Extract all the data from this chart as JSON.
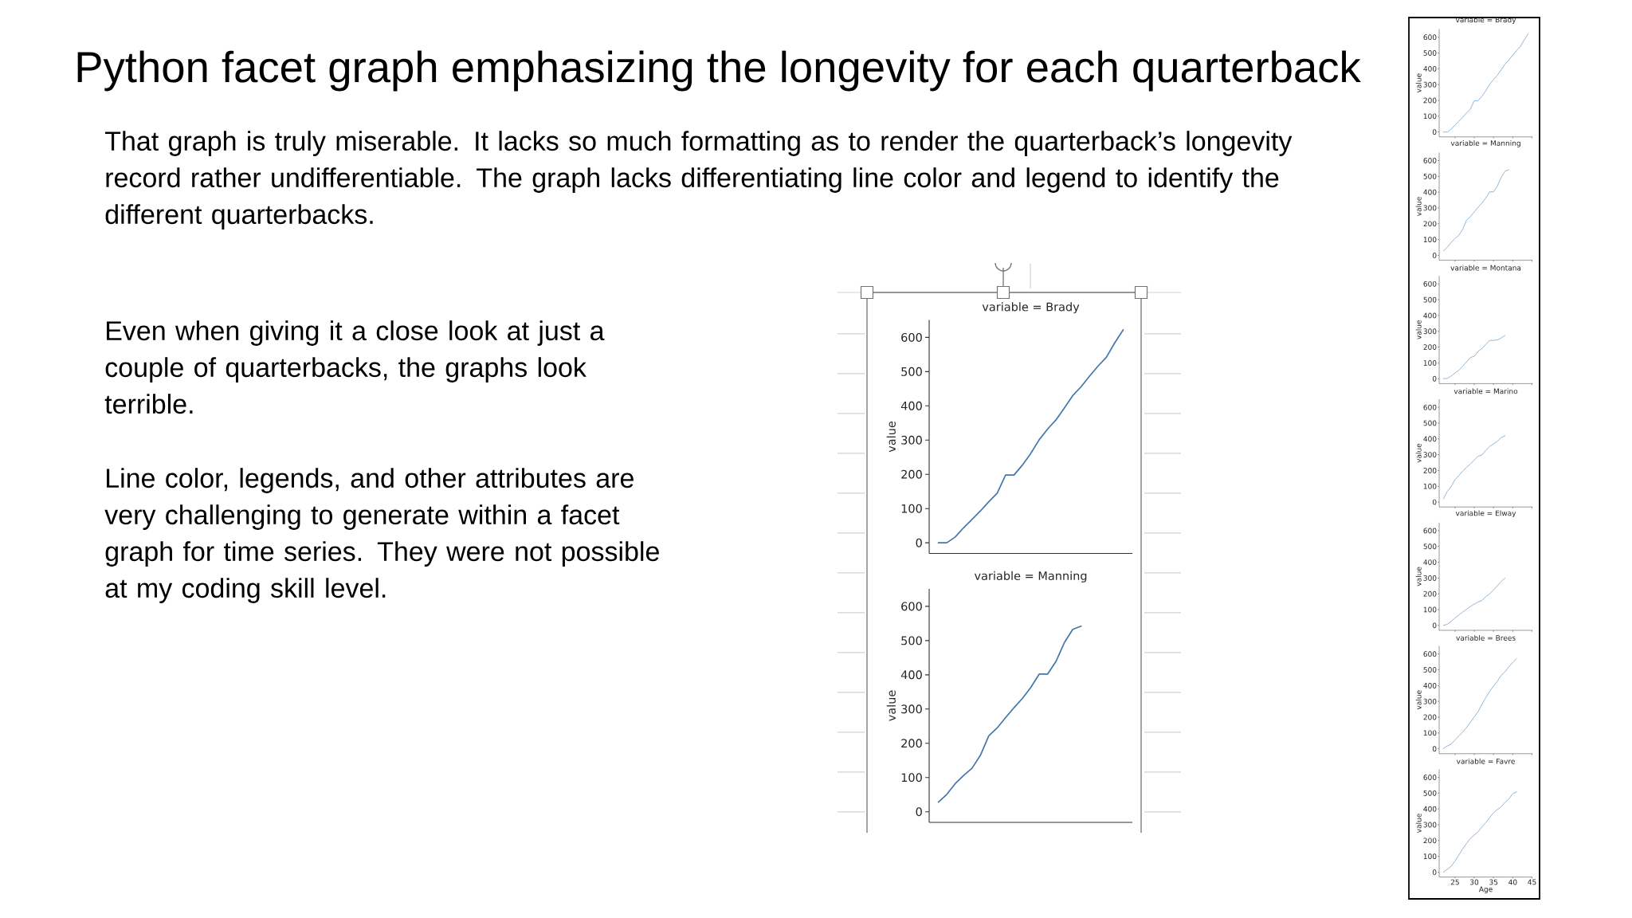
{
  "chart_data": [
    {
      "type": "other",
      "title": "Python facet graph emphasizing the longevity for each quarterback",
      "annotations": [
        "That graph is truly miserable.  It lacks so much formatting as to render the quarterback’s longevity record rather undifferentiable.  The graph lacks differentiating line color and legend to identify the different quarterbacks.",
        "Even when giving it a close look at just a couple of quarterbacks, the graphs look terrible.",
        "Line color, legends, and other attributes are very challenging to generate within a facet graph for time series.  They were not possible at my coding skill level."
      ]
    },
    {
      "type": "line",
      "title": "variable = Brady",
      "ylabel": "value",
      "categories": [
        null,
        null,
        null,
        null,
        null,
        null,
        null,
        null,
        null,
        null,
        null,
        null,
        null,
        null,
        null,
        null,
        null,
        null,
        null,
        null,
        null,
        null,
        null
      ],
      "values": [
        0,
        0,
        17,
        44,
        68,
        93,
        120,
        145,
        198,
        198,
        227,
        261,
        301,
        332,
        359,
        394,
        430,
        456,
        487,
        516,
        542,
        584,
        622
      ],
      "color": "#4477aa",
      "ylim": [
        -31,
        651
      ],
      "yticks": [
        0,
        100,
        200,
        300,
        400,
        500,
        600
      ]
    },
    {
      "type": "line",
      "title": "variable = Manning",
      "ylabel": "value",
      "categories": [
        null,
        null,
        null,
        null,
        null,
        null,
        null,
        null,
        null,
        null,
        null,
        null,
        null,
        null,
        null,
        null,
        null,
        null,
        null,
        null,
        null,
        null,
        null
      ],
      "values": [
        28,
        51,
        82,
        106,
        127,
        165,
        222,
        245,
        275,
        304,
        331,
        363,
        402,
        402,
        439,
        494,
        533,
        542,
        null,
        null,
        null,
        null,
        null
      ],
      "color": "#4477aa",
      "ylim": [
        -31,
        651
      ],
      "yticks": [
        0,
        100,
        200,
        300,
        400,
        500,
        600
      ]
    },
    {
      "type": "line",
      "title": "variable = Brady",
      "ylabel": "value",
      "x": [
        22,
        23,
        24,
        25,
        26,
        27,
        28,
        29,
        30,
        31,
        32,
        33,
        34,
        35,
        36,
        37,
        38,
        39,
        40,
        41,
        42,
        43,
        44
      ],
      "values": [
        0,
        0,
        17,
        44,
        68,
        93,
        120,
        145,
        198,
        198,
        227,
        261,
        301,
        332,
        359,
        394,
        430,
        456,
        487,
        516,
        542,
        584,
        622
      ],
      "color": "#86aed0",
      "xlim": [
        20.9,
        45.1
      ],
      "ylim": [
        -31,
        651
      ],
      "xticks": [
        25,
        30,
        35,
        40,
        45
      ],
      "yticks": [
        0,
        100,
        200,
        300,
        400,
        500,
        600
      ],
      "tick_labels": "y"
    },
    {
      "type": "line",
      "title": "variable = Manning",
      "ylabel": "value",
      "x": [
        22,
        23,
        24,
        25,
        26,
        27,
        28,
        29,
        30,
        31,
        32,
        33,
        34,
        35,
        36,
        37,
        38,
        39
      ],
      "values": [
        28,
        51,
        82,
        106,
        127,
        165,
        222,
        245,
        275,
        304,
        331,
        363,
        402,
        402,
        439,
        494,
        533,
        542
      ],
      "color": "#86aed0",
      "xlim": [
        20.9,
        45.1
      ],
      "ylim": [
        -31,
        651
      ],
      "xticks": [
        25,
        30,
        35,
        40,
        45
      ],
      "yticks": [
        0,
        100,
        200,
        300,
        400,
        500,
        600
      ],
      "tick_labels": "y"
    },
    {
      "type": "line",
      "title": "variable = Montana",
      "ylabel": "value",
      "x": [
        22,
        23,
        24,
        25,
        26,
        27,
        28,
        29,
        30,
        31,
        32,
        33,
        34,
        35,
        36,
        37,
        38
      ],
      "values": [
        0,
        2,
        17,
        36,
        53,
        79,
        107,
        134,
        142,
        173,
        191,
        217,
        243,
        243,
        245,
        258,
        274
      ],
      "color": "#86aed0",
      "xlim": [
        20.9,
        45.1
      ],
      "ylim": [
        -31,
        651
      ],
      "xticks": [
        25,
        30,
        35,
        40,
        45
      ],
      "yticks": [
        0,
        100,
        200,
        300,
        400,
        500,
        600
      ],
      "tick_labels": "y"
    },
    {
      "type": "line",
      "title": "variable = Marino",
      "ylabel": "value",
      "x": [
        22,
        23,
        24,
        25,
        26,
        27,
        28,
        29,
        30,
        31,
        32,
        33,
        34,
        35,
        36,
        37,
        38
      ],
      "values": [
        20,
        68,
        98,
        142,
        168,
        196,
        220,
        241,
        266,
        290,
        298,
        328,
        352,
        369,
        385,
        408,
        420
      ],
      "color": "#86aed0",
      "xlim": [
        20.9,
        45.1
      ],
      "ylim": [
        -31,
        651
      ],
      "xticks": [
        25,
        30,
        35,
        40,
        45
      ],
      "yticks": [
        0,
        100,
        200,
        300,
        400,
        500,
        600
      ],
      "tick_labels": "y"
    },
    {
      "type": "line",
      "title": "variable = Elway",
      "ylabel": "value",
      "x": [
        22,
        23,
        24,
        25,
        26,
        27,
        28,
        29,
        30,
        31,
        32,
        33,
        34,
        35,
        36,
        37,
        38
      ],
      "values": [
        0,
        7,
        25,
        47,
        66,
        85,
        102,
        120,
        135,
        148,
        158,
        183,
        199,
        225,
        251,
        278,
        300
      ],
      "color": "#86aed0",
      "xlim": [
        20.9,
        45.1
      ],
      "ylim": [
        -31,
        651
      ],
      "xticks": [
        25,
        30,
        35,
        40,
        45
      ],
      "yticks": [
        0,
        100,
        200,
        300,
        400,
        500,
        600
      ],
      "tick_labels": "y"
    },
    {
      "type": "line",
      "title": "variable = Brees",
      "ylabel": "value",
      "x": [
        22,
        23,
        24,
        25,
        26,
        27,
        28,
        29,
        30,
        31,
        32,
        33,
        34,
        35,
        36,
        37,
        38,
        39,
        40,
        41
      ],
      "values": [
        1,
        18,
        29,
        56,
        80,
        106,
        134,
        168,
        202,
        235,
        281,
        324,
        363,
        396,
        428,
        465,
        488,
        520,
        547,
        571
      ],
      "color": "#86aed0",
      "xlim": [
        20.9,
        45.1
      ],
      "ylim": [
        -31,
        651
      ],
      "xticks": [
        25,
        30,
        35,
        40,
        45
      ],
      "yticks": [
        0,
        100,
        200,
        300,
        400,
        500,
        600
      ],
      "tick_labels": "y"
    },
    {
      "type": "line",
      "title": "variable = Favre",
      "xlabel": "Age",
      "ylabel": "value",
      "x": [
        22,
        23,
        24,
        25,
        26,
        27,
        28,
        29,
        30,
        31,
        32,
        33,
        34,
        35,
        36,
        37,
        38,
        39,
        40,
        41
      ],
      "values": [
        0,
        18,
        37,
        70,
        108,
        147,
        182,
        213,
        235,
        255,
        287,
        314,
        346,
        376,
        396,
        414,
        442,
        464,
        497,
        508
      ],
      "color": "#86aed0",
      "xlim": [
        20.9,
        45.1
      ],
      "ylim": [
        -31,
        651
      ],
      "xticks": [
        25,
        30,
        35,
        40,
        45
      ],
      "yticks": [
        0,
        100,
        200,
        300,
        400,
        500,
        600
      ]
    }
  ]
}
